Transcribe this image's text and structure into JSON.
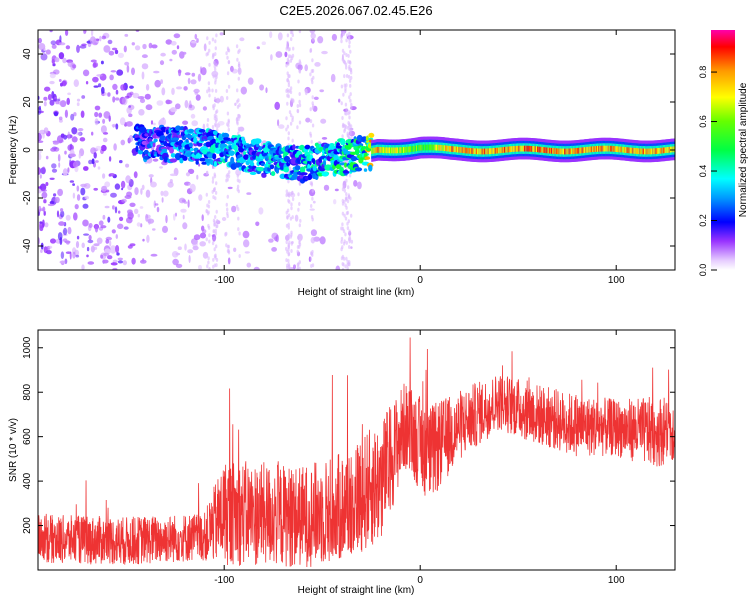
{
  "title": "C2E5.2026.067.02.45.E26",
  "colors": {
    "signal": "#ee3333",
    "frame": "#000000"
  },
  "chart_data": [
    {
      "type": "heatmap",
      "xlabel": "Height of straight line (km)",
      "ylabel": "Frequency (Hz)",
      "xlim": [
        -195,
        130
      ],
      "ylim": [
        -50,
        50
      ],
      "xticks": [
        -100,
        0,
        100
      ],
      "yticks": [
        -40,
        -20,
        0,
        20,
        40
      ],
      "colorbar": {
        "label": "Normalized spectral amplitude",
        "range": [
          0,
          0.97
        ],
        "ticks": [
          0.0,
          0.2,
          0.4,
          0.6,
          0.8
        ]
      },
      "ridge": [
        {
          "x": -140,
          "f": 3,
          "amp": 0.25
        },
        {
          "x": -120,
          "f": 2,
          "amp": 0.3
        },
        {
          "x": -100,
          "f": 1,
          "amp": 0.35
        },
        {
          "x": -80,
          "f": -4,
          "amp": 0.35
        },
        {
          "x": -60,
          "f": -6,
          "amp": 0.35
        },
        {
          "x": -45,
          "f": -3,
          "amp": 0.4
        },
        {
          "x": -30,
          "f": -2,
          "amp": 0.45
        },
        {
          "x": -22,
          "f": 0,
          "amp": 0.85
        },
        {
          "x": 0,
          "f": 1,
          "amp": 0.6
        },
        {
          "x": 15,
          "f": 0,
          "amp": 0.85
        },
        {
          "x": 60,
          "f": 0,
          "amp": 0.9
        },
        {
          "x": 100,
          "f": 0,
          "amp": 0.85
        },
        {
          "x": 130,
          "f": 0,
          "amp": 0.85
        }
      ]
    },
    {
      "type": "line",
      "xlabel": "Height of straight line (km)",
      "ylabel": "SNR (10 * v/v)",
      "xlim": [
        -195,
        130
      ],
      "ylim": [
        0,
        1080
      ],
      "xticks": [
        -100,
        0,
        100
      ],
      "yticks": [
        200,
        400,
        600,
        800,
        1000
      ],
      "envelope": [
        {
          "x": -195,
          "mean": 140,
          "spread": 110
        },
        {
          "x": -150,
          "mean": 130,
          "spread": 110
        },
        {
          "x": -110,
          "mean": 150,
          "spread": 110
        },
        {
          "x": -100,
          "mean": 260,
          "spread": 240
        },
        {
          "x": -60,
          "mean": 240,
          "spread": 230
        },
        {
          "x": -40,
          "mean": 280,
          "spread": 250
        },
        {
          "x": -20,
          "mean": 400,
          "spread": 280
        },
        {
          "x": -8,
          "mean": 650,
          "spread": 200
        },
        {
          "x": 5,
          "mean": 520,
          "spread": 220
        },
        {
          "x": 20,
          "mean": 650,
          "spread": 160
        },
        {
          "x": 40,
          "mean": 760,
          "spread": 130
        },
        {
          "x": 60,
          "mean": 700,
          "spread": 140
        },
        {
          "x": 80,
          "mean": 650,
          "spread": 140
        },
        {
          "x": 100,
          "mean": 640,
          "spread": 130
        },
        {
          "x": 120,
          "mean": 620,
          "spread": 160
        },
        {
          "x": 130,
          "mean": 640,
          "spread": 150
        }
      ]
    }
  ]
}
